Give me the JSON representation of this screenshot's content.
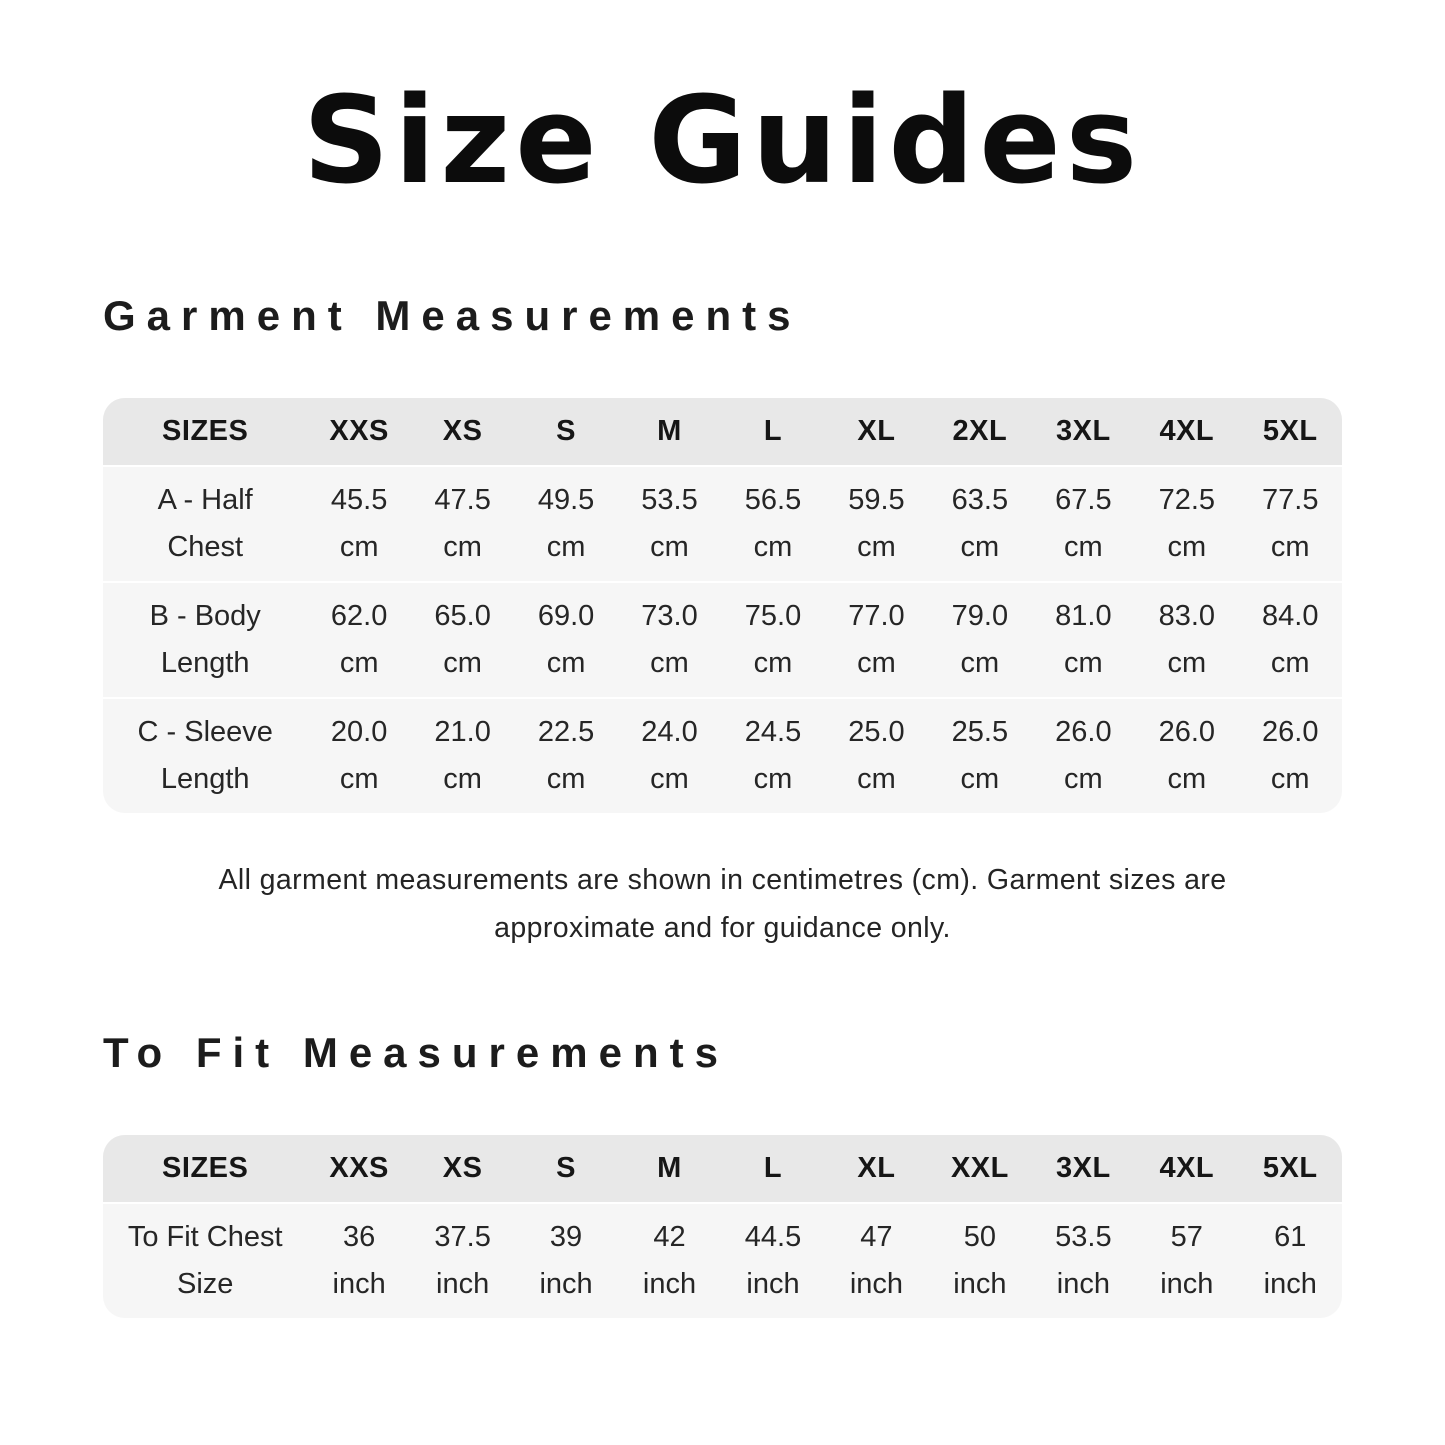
{
  "page": {
    "title": "Size Guides",
    "background_color": "#ffffff",
    "text_color": "#1d1d1d"
  },
  "colors": {
    "table_header_bg": "#e8e8e8",
    "table_body_bg": "#f6f6f6",
    "row_separator": "#ffffff",
    "title_color": "#0c0c0c"
  },
  "garment_section": {
    "heading": "Garment Measurements",
    "table": {
      "label_header": "SIZES",
      "size_headers": [
        "XXS",
        "XS",
        "S",
        "M",
        "L",
        "XL",
        "2XL",
        "3XL",
        "4XL",
        "5XL"
      ],
      "rows": [
        {
          "label_line1": "A - Half",
          "label_line2": "Chest",
          "unit": "cm",
          "values": [
            "45.5",
            "47.5",
            "49.5",
            "53.5",
            "56.5",
            "59.5",
            "63.5",
            "67.5",
            "72.5",
            "77.5"
          ]
        },
        {
          "label_line1": "B - Body",
          "label_line2": "Length",
          "unit": "cm",
          "values": [
            "62.0",
            "65.0",
            "69.0",
            "73.0",
            "75.0",
            "77.0",
            "79.0",
            "81.0",
            "83.0",
            "84.0"
          ]
        },
        {
          "label_line1": "C - Sleeve",
          "label_line2": "Length",
          "unit": "cm",
          "values": [
            "20.0",
            "21.0",
            "22.5",
            "24.0",
            "24.5",
            "25.0",
            "25.5",
            "26.0",
            "26.0",
            "26.0"
          ]
        }
      ]
    },
    "footnote_lines": [
      "All garment measurements are shown in centimetres (cm). Garment sizes are",
      "approximate and for guidance only."
    ]
  },
  "tofit_section": {
    "heading": "To Fit Measurements",
    "table": {
      "label_header": "SIZES",
      "size_headers": [
        "XXS",
        "XS",
        "S",
        "M",
        "L",
        "XL",
        "XXL",
        "3XL",
        "4XL",
        "5XL"
      ],
      "rows": [
        {
          "label_line1": "To Fit Chest",
          "label_line2": "Size",
          "unit": "inch",
          "values": [
            "36",
            "37.5",
            "39",
            "42",
            "44.5",
            "47",
            "50",
            "53.5",
            "57",
            "61"
          ]
        }
      ]
    }
  }
}
